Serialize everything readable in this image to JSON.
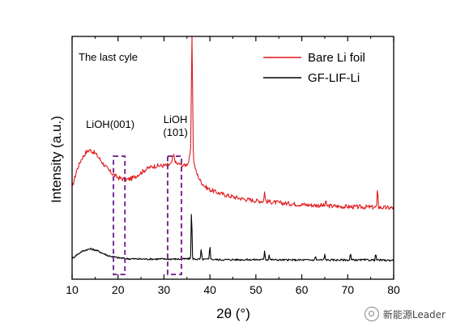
{
  "chart_data": {
    "type": "line",
    "title": "The last cyle",
    "xlabel": "2θ (°)",
    "ylabel": "Intensity (a.u.)",
    "xlim": [
      10,
      80
    ],
    "x_ticks": [
      10,
      20,
      30,
      40,
      50,
      60,
      70,
      80
    ],
    "y_ticks_shown": false,
    "legend_position": "top-right",
    "series": [
      {
        "name": "Bare Li foil",
        "color": "#e3191c",
        "points": [
          [
            10,
            2.3
          ],
          [
            11,
            2.85
          ],
          [
            12,
            3.2
          ],
          [
            13,
            3.42
          ],
          [
            13.8,
            3.5
          ],
          [
            15,
            3.4
          ],
          [
            16,
            3.22
          ],
          [
            17,
            3.02
          ],
          [
            18,
            2.85
          ],
          [
            19,
            2.72
          ],
          [
            20,
            2.62
          ],
          [
            21,
            2.58
          ],
          [
            22,
            2.56
          ],
          [
            23,
            2.6
          ],
          [
            24,
            2.68
          ],
          [
            25,
            2.78
          ],
          [
            26,
            2.88
          ],
          [
            27,
            2.95
          ],
          [
            28,
            2.99
          ],
          [
            29,
            3.0
          ],
          [
            30,
            3.0
          ],
          [
            31,
            3.02
          ],
          [
            31.6,
            3.05
          ],
          [
            32.1,
            3.35
          ],
          [
            32.6,
            3.07
          ],
          [
            33.5,
            3.05
          ],
          [
            34.5,
            3.0
          ],
          [
            35.3,
            3.1
          ],
          [
            35.8,
            3.4
          ],
          [
            36.1,
            7.2
          ],
          [
            36.4,
            3.2
          ],
          [
            37,
            2.8
          ],
          [
            38,
            2.5
          ],
          [
            39,
            2.33
          ],
          [
            40,
            2.24
          ],
          [
            42,
            2.13
          ],
          [
            44,
            2.05
          ],
          [
            46,
            1.98
          ],
          [
            48,
            1.93
          ],
          [
            50,
            1.89
          ],
          [
            51.7,
            1.87
          ],
          [
            51.9,
            2.23
          ],
          [
            52.1,
            1.87
          ],
          [
            54,
            1.84
          ],
          [
            56,
            1.81
          ],
          [
            58,
            1.79
          ],
          [
            60,
            1.77
          ],
          [
            62,
            1.75
          ],
          [
            64,
            1.74
          ],
          [
            65.0,
            1.73
          ],
          [
            65.2,
            1.9
          ],
          [
            65.4,
            1.73
          ],
          [
            68,
            1.71
          ],
          [
            70,
            1.7
          ],
          [
            72,
            1.69
          ],
          [
            74,
            1.69
          ],
          [
            76.3,
            1.68
          ],
          [
            76.5,
            2.38
          ],
          [
            76.7,
            1.68
          ],
          [
            78,
            1.67
          ],
          [
            80,
            1.66
          ]
        ]
      },
      {
        "name": "GF-LIF-Li",
        "color": "#000000",
        "points": [
          [
            10,
            0.05
          ],
          [
            11,
            0.17
          ],
          [
            12,
            0.27
          ],
          [
            13,
            0.33
          ],
          [
            14,
            0.36
          ],
          [
            15,
            0.33
          ],
          [
            16,
            0.27
          ],
          [
            17,
            0.2
          ],
          [
            18,
            0.14
          ],
          [
            20,
            0.08
          ],
          [
            22,
            0.05
          ],
          [
            25,
            0.04
          ],
          [
            28,
            0.04
          ],
          [
            30,
            0.04
          ],
          [
            32,
            0.04
          ],
          [
            34,
            0.04
          ],
          [
            35.8,
            0.05
          ],
          [
            36.0,
            1.85
          ],
          [
            36.2,
            0.05
          ],
          [
            37.5,
            0.03
          ],
          [
            37.9,
            0.03
          ],
          [
            38.1,
            0.38
          ],
          [
            38.3,
            0.03
          ],
          [
            39.8,
            0.03
          ],
          [
            40.0,
            0.55
          ],
          [
            40.2,
            0.03
          ],
          [
            42,
            0.02
          ],
          [
            45,
            0.02
          ],
          [
            48,
            0.02
          ],
          [
            51.7,
            0.02
          ],
          [
            51.9,
            0.32
          ],
          [
            52.1,
            0.02
          ],
          [
            52.7,
            0.02
          ],
          [
            52.9,
            0.18
          ],
          [
            53.1,
            0.02
          ],
          [
            56,
            0.01
          ],
          [
            60,
            0.01
          ],
          [
            62.8,
            0.01
          ],
          [
            63.0,
            0.15
          ],
          [
            63.2,
            0.01
          ],
          [
            64.8,
            0.01
          ],
          [
            65.0,
            0.2
          ],
          [
            65.2,
            0.01
          ],
          [
            68,
            0.01
          ],
          [
            70.4,
            0.01
          ],
          [
            70.6,
            0.25
          ],
          [
            70.8,
            0.01
          ],
          [
            73,
            0.01
          ],
          [
            75.9,
            0.01
          ],
          [
            76.1,
            0.23
          ],
          [
            76.3,
            0.01
          ],
          [
            78,
            0.0
          ],
          [
            80,
            0.0
          ]
        ]
      }
    ],
    "annotations": [
      {
        "text": "LiOH(001)",
        "text_x": 18.3,
        "text_y": 4.2,
        "box_x": [
          19.0,
          21.5
        ],
        "box_y": [
          -0.45,
          3.3
        ]
      },
      {
        "text": "LiOH",
        "text2": "(101)",
        "text_x": 32.5,
        "text_y": 4.35,
        "box_x": [
          30.8,
          33.8
        ],
        "box_y": [
          -0.45,
          3.3
        ]
      }
    ],
    "box_color": "#7a2d8f",
    "box_style": "dashed"
  },
  "watermark": {
    "icon": "wechat-icon",
    "text": "新能源Leader"
  }
}
